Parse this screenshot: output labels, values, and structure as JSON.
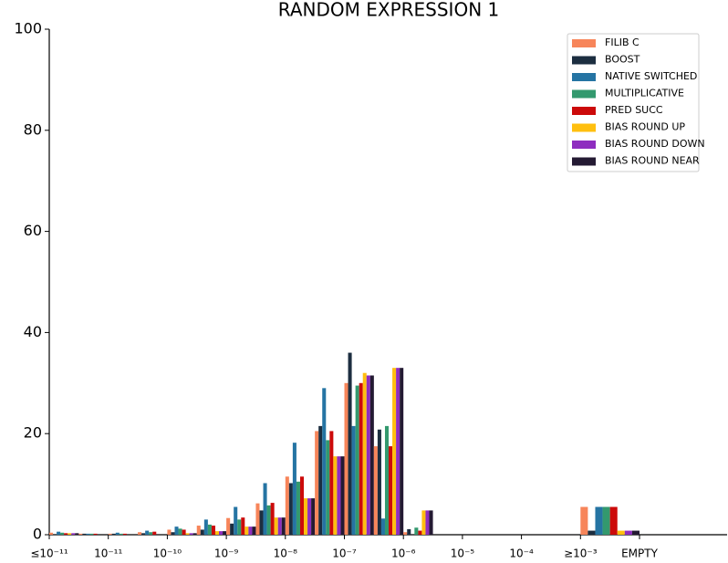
{
  "chart_data": {
    "type": "bar",
    "title": "RANDOM EXPRESSION 1",
    "categories": [
      "≤10⁻¹¹",
      null,
      "10⁻¹¹",
      null,
      "10⁻¹⁰",
      null,
      "10⁻⁹",
      null,
      "10⁻⁸",
      null,
      "10⁻⁷",
      null,
      "10⁻⁶",
      null,
      "10⁻⁵",
      null,
      "10⁻⁴",
      null,
      "≥10⁻³",
      null,
      "EMPTY"
    ],
    "series": [
      {
        "name": "FILIB C",
        "color": "#f7855a",
        "values": [
          0.4,
          0.2,
          0.2,
          0.5,
          1.0,
          1.8,
          3.3,
          6.2,
          11.5,
          20.5,
          30,
          17.5,
          0.5,
          0,
          0,
          0,
          0,
          0,
          5.5,
          null,
          null
        ]
      },
      {
        "name": "BOOST",
        "color": "#1c2e40",
        "values": [
          0,
          0.2,
          0.2,
          0.3,
          0.5,
          1.0,
          2.2,
          4.8,
          10.2,
          21.5,
          36,
          20.8,
          1.1,
          0,
          0,
          0,
          0,
          0,
          0.8,
          null,
          null
        ]
      },
      {
        "name": "NATIVE SWITCHED",
        "color": "#2574a3",
        "values": [
          0.6,
          0.2,
          0.4,
          0.8,
          1.6,
          3.0,
          5.5,
          10.2,
          18.2,
          29,
          21.5,
          3.2,
          0,
          0,
          0,
          0,
          0,
          0,
          5.5,
          null,
          null
        ]
      },
      {
        "name": "MULTIPLICATIVE",
        "color": "#33996e",
        "values": [
          0.4,
          0.2,
          0.2,
          0.5,
          1.2,
          2.0,
          3.0,
          5.8,
          10.5,
          18.7,
          29.5,
          21.5,
          1.4,
          0,
          0,
          0,
          0,
          0,
          5.5,
          null,
          null
        ]
      },
      {
        "name": "PRED SUCC",
        "color": "#cc0a0a",
        "values": [
          0.3,
          0.2,
          0.2,
          0.6,
          1.0,
          1.8,
          3.4,
          6.3,
          11.5,
          20.5,
          30,
          17.5,
          0.8,
          0,
          0,
          0,
          0,
          0,
          5.5,
          null,
          null
        ]
      },
      {
        "name": "BIAS ROUND UP",
        "color": "#ffbf0f",
        "values": [
          0.3,
          0,
          0,
          0,
          0.3,
          0.7,
          1.6,
          3.4,
          7.2,
          15.5,
          32,
          33,
          4.8,
          0,
          0,
          0,
          0,
          0,
          0.8,
          null,
          null
        ]
      },
      {
        "name": "BIAS ROUND DOWN",
        "color": "#8e2dbf",
        "values": [
          0.3,
          0,
          0,
          0,
          0.3,
          0.7,
          1.6,
          3.4,
          7.2,
          15.5,
          31.5,
          33,
          4.8,
          0,
          0,
          0,
          0,
          0,
          0.8,
          null,
          null
        ]
      },
      {
        "name": "BIAS ROUND NEAR",
        "color": "#241a33",
        "values": [
          0.3,
          0,
          0,
          0,
          0.3,
          0.7,
          1.6,
          3.4,
          7.2,
          15.5,
          31.5,
          33,
          4.8,
          0,
          0,
          0,
          0,
          0,
          0.8,
          null,
          null
        ]
      }
    ],
    "ylim": [
      0,
      100
    ],
    "yticks": [
      0,
      20,
      40,
      60,
      80,
      100
    ],
    "legend": "upper right"
  }
}
